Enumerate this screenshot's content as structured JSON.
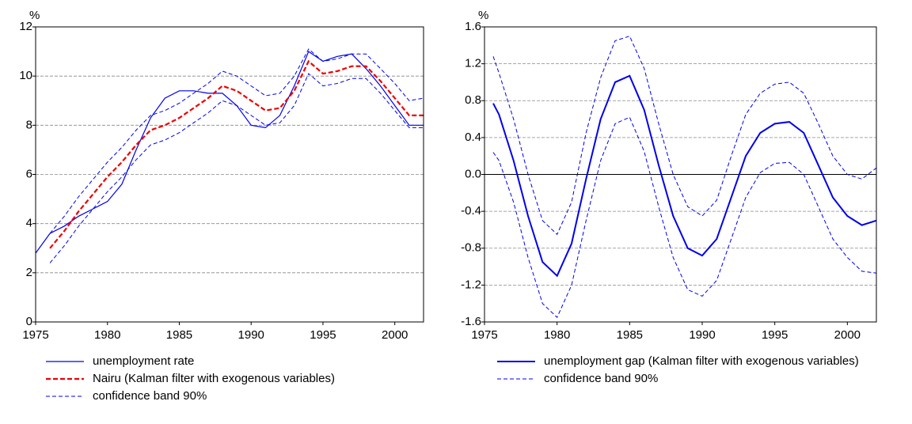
{
  "chart_data": [
    {
      "type": "line",
      "y_unit": "%",
      "x": [
        1975,
        1976,
        1977,
        1978,
        1979,
        1980,
        1981,
        1982,
        1983,
        1984,
        1985,
        1986,
        1987,
        1988,
        1989,
        1990,
        1991,
        1992,
        1993,
        1994,
        1995,
        1996,
        1997,
        1998,
        1999,
        2000,
        2001,
        2002
      ],
      "xlim": [
        1975,
        2002
      ],
      "xticks": [
        1975,
        1980,
        1985,
        1990,
        1995,
        2000
      ],
      "ylim": [
        0,
        12
      ],
      "yticks": [
        0,
        2,
        4,
        6,
        8,
        10,
        12
      ],
      "grid": true,
      "series": [
        {
          "name": "unemployment rate",
          "color": "#0000ee",
          "style": "solid",
          "values": [
            2.8,
            3.6,
            3.9,
            4.3,
            4.6,
            4.9,
            5.6,
            7.0,
            8.3,
            9.1,
            9.4,
            9.4,
            9.3,
            9.3,
            8.8,
            8.0,
            7.9,
            8.4,
            9.6,
            11.0,
            10.6,
            10.8,
            10.9,
            10.3,
            9.6,
            8.8,
            8.0,
            8.0
          ]
        },
        {
          "name": "Nairu (Kalman filter with exogenous variables)",
          "color": "#ee0000",
          "style": "dashed-bold",
          "values": [
            null,
            3.0,
            3.7,
            4.5,
            5.2,
            5.9,
            6.5,
            7.2,
            7.8,
            8.0,
            8.3,
            8.7,
            9.1,
            9.6,
            9.4,
            9.0,
            8.6,
            8.7,
            9.4,
            10.6,
            10.1,
            10.2,
            10.4,
            10.4,
            9.8,
            9.1,
            8.4,
            8.4
          ]
        }
      ],
      "band": {
        "name": "confidence band 90%",
        "color": "#0000ee",
        "upper": [
          null,
          3.6,
          4.3,
          5.1,
          5.8,
          6.5,
          7.1,
          7.8,
          8.4,
          8.6,
          8.9,
          9.3,
          9.7,
          10.2,
          10.0,
          9.6,
          9.2,
          9.3,
          10.0,
          11.1,
          10.6,
          10.7,
          10.9,
          10.9,
          10.3,
          9.7,
          9.0,
          9.1
        ],
        "lower": [
          null,
          2.4,
          3.1,
          3.9,
          4.6,
          5.3,
          5.9,
          6.6,
          7.2,
          7.4,
          7.7,
          8.1,
          8.5,
          9.0,
          8.8,
          8.4,
          8.0,
          8.1,
          8.8,
          10.1,
          9.6,
          9.7,
          9.9,
          9.9,
          9.3,
          8.6,
          7.9,
          7.9
        ]
      }
    },
    {
      "type": "line",
      "y_unit": "%",
      "x": [
        1975.6,
        1976,
        1977,
        1978,
        1979,
        1980,
        1981,
        1982,
        1983,
        1984,
        1985,
        1986,
        1987,
        1988,
        1989,
        1990,
        1991,
        1992,
        1993,
        1994,
        1995,
        1996,
        1997,
        1998,
        1999,
        2000,
        2001,
        2002
      ],
      "xlim": [
        1975,
        2002
      ],
      "xticks": [
        1975,
        1980,
        1985,
        1990,
        1995,
        2000
      ],
      "ylim": [
        -1.6,
        1.6
      ],
      "yticks": [
        -1.6,
        -1.2,
        -0.8,
        -0.4,
        {
          "value": 0,
          "label": "0.0"
        },
        0.4,
        0.8,
        1.2,
        1.6
      ],
      "grid": true,
      "zero_line": true,
      "series": [
        {
          "name": "unemployment gap (Kalman filter with exogenous variables)",
          "color": "#0000ee",
          "style": "solid-bold",
          "values": [
            0.77,
            0.65,
            0.15,
            -0.45,
            -0.95,
            -1.1,
            -0.75,
            -0.05,
            0.6,
            1.0,
            1.07,
            0.7,
            0.1,
            -0.45,
            -0.8,
            -0.88,
            -0.7,
            -0.25,
            0.2,
            0.45,
            0.55,
            0.57,
            0.45,
            0.1,
            -0.25,
            -0.45,
            -0.55,
            -0.5
          ]
        }
      ],
      "band": {
        "name": "confidence band 90%",
        "color": "#0000ee",
        "upper": [
          1.28,
          1.1,
          0.6,
          0.0,
          -0.5,
          -0.65,
          -0.3,
          0.45,
          1.05,
          1.45,
          1.5,
          1.15,
          0.55,
          0.0,
          -0.35,
          -0.45,
          -0.28,
          0.2,
          0.65,
          0.88,
          0.98,
          1.0,
          0.88,
          0.55,
          0.2,
          0.0,
          -0.05,
          0.07
        ],
        "lower": [
          0.24,
          0.15,
          -0.3,
          -0.9,
          -1.4,
          -1.55,
          -1.2,
          -0.5,
          0.15,
          0.55,
          0.62,
          0.25,
          -0.35,
          -0.9,
          -1.25,
          -1.32,
          -1.15,
          -0.7,
          -0.25,
          0.02,
          0.12,
          0.13,
          0.0,
          -0.35,
          -0.7,
          -0.9,
          -1.05,
          -1.07
        ]
      }
    }
  ]
}
